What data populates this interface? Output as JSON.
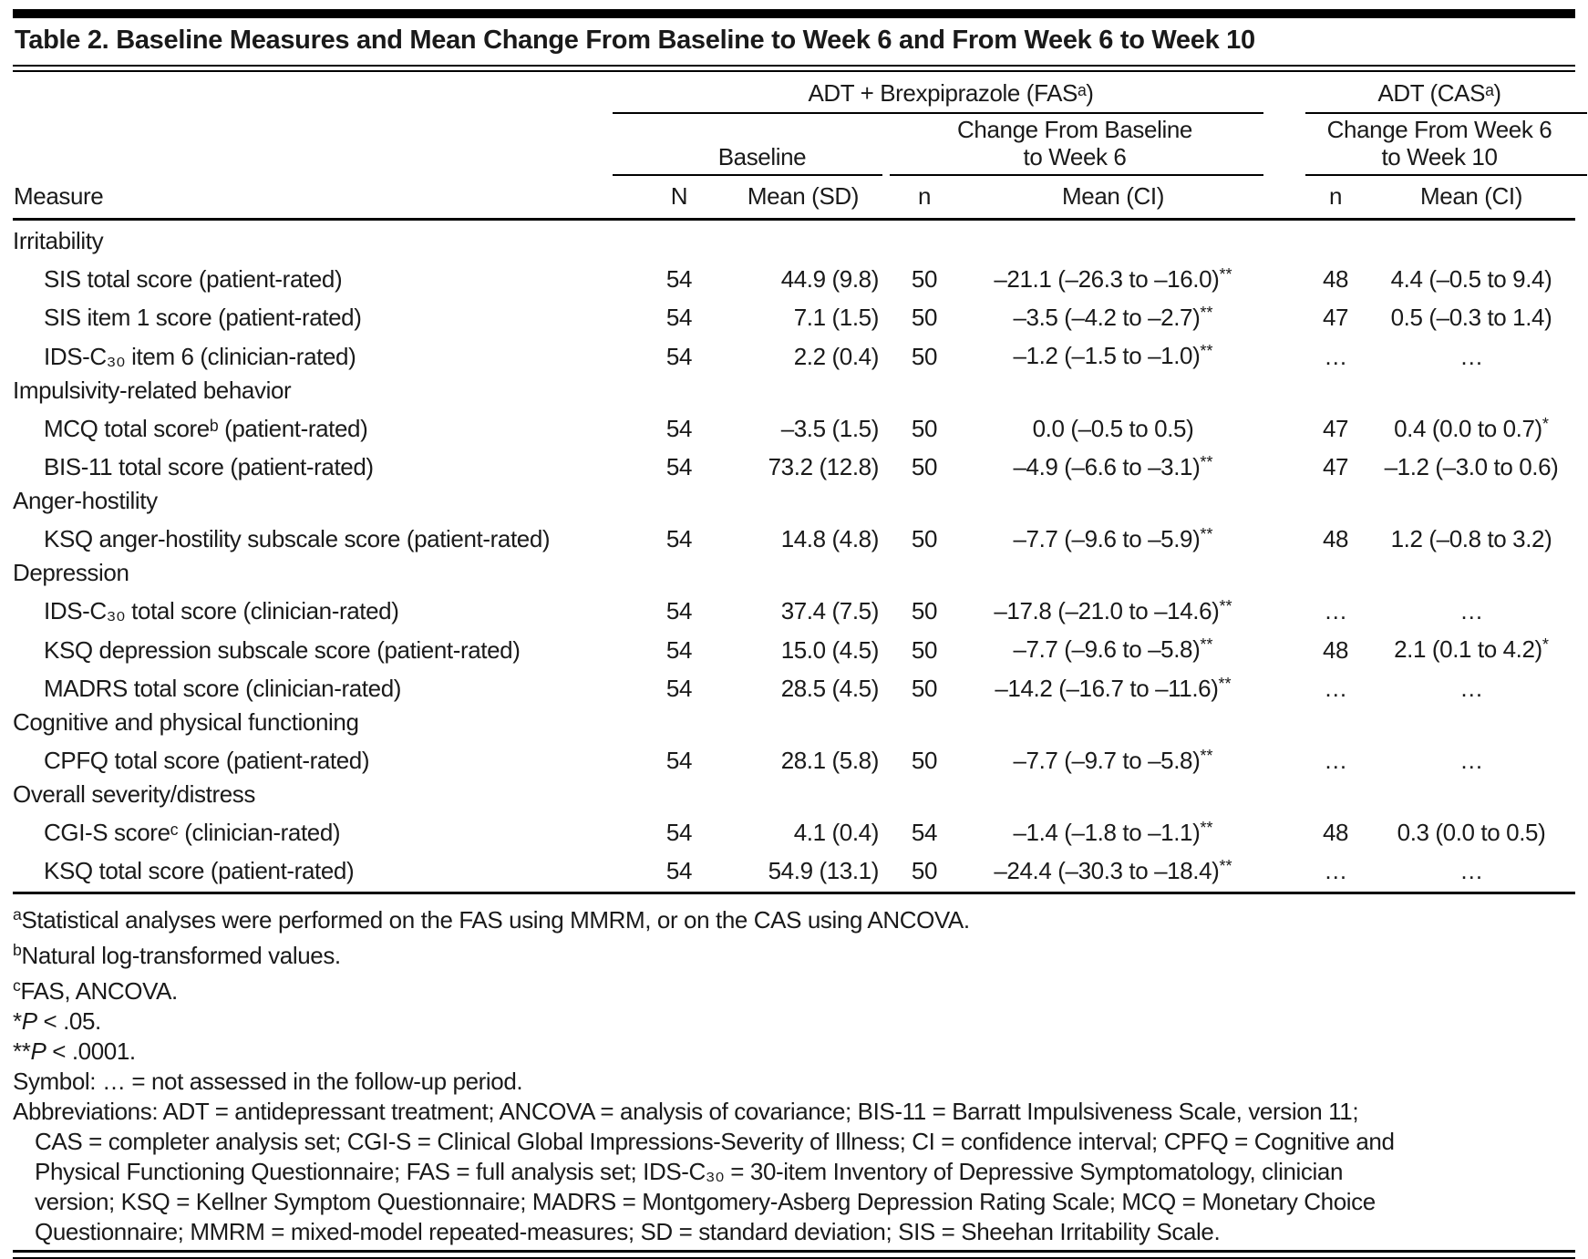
{
  "title": "Table 2. Baseline Measures and Mean Change From Baseline to Week 6 and From Week 6 to Week 10",
  "header": {
    "measure": "Measure",
    "group1": "ADT + Brexpiprazole (FASᵃ)",
    "group2": "ADT (CASᵃ)",
    "sub_baseline": "Baseline",
    "sub_change6": "Change From Baseline\nto Week 6",
    "sub_change10": "Change From Week 6\nto Week 10",
    "col_N": "N",
    "col_mean_sd": "Mean (SD)",
    "col_n6": "n",
    "col_mean_ci6": "Mean (CI)",
    "col_n10": "n",
    "col_mean_ci10": "Mean (CI)"
  },
  "table": {
    "rows": [
      {
        "type": "section",
        "label": "Irritability"
      },
      {
        "type": "data",
        "label": "SIS total score (patient-rated)",
        "n1": "54",
        "mean_sd": "44.9 (9.8)",
        "n2": "50",
        "mean_ci6": "–21.1 (–26.3 to –16.0)**",
        "n3": "48",
        "mean_ci10": "4.4 (–0.5 to 9.4)"
      },
      {
        "type": "data",
        "label": "SIS item 1 score (patient-rated)",
        "n1": "54",
        "mean_sd": "7.1 (1.5)",
        "n2": "50",
        "mean_ci6": "–3.5 (–4.2 to –2.7)**",
        "n3": "47",
        "mean_ci10": "0.5 (–0.3 to 1.4)"
      },
      {
        "type": "data",
        "label": "IDS-C₃₀ item 6 (clinician-rated)",
        "n1": "54",
        "mean_sd": "2.2 (0.4)",
        "n2": "50",
        "mean_ci6": "–1.2 (–1.5 to –1.0)**",
        "n3": "…",
        "mean_ci10": "…"
      },
      {
        "type": "section",
        "label": "Impulsivity-related behavior"
      },
      {
        "type": "data",
        "label": "MCQ total scoreᵇ (patient-rated)",
        "n1": "54",
        "mean_sd": "–3.5 (1.5)",
        "n2": "50",
        "mean_ci6": "0.0 (–0.5 to 0.5)",
        "n3": "47",
        "mean_ci10": "0.4 (0.0 to 0.7)*"
      },
      {
        "type": "data",
        "label": "BIS-11 total score (patient-rated)",
        "n1": "54",
        "mean_sd": "73.2 (12.8)",
        "n2": "50",
        "mean_ci6": "–4.9 (–6.6 to –3.1)**",
        "n3": "47",
        "mean_ci10": "–1.2 (–3.0 to 0.6)"
      },
      {
        "type": "section",
        "label": "Anger-hostility"
      },
      {
        "type": "data",
        "label": "KSQ anger-hostility subscale score (patient-rated)",
        "n1": "54",
        "mean_sd": "14.8 (4.8)",
        "n2": "50",
        "mean_ci6": "–7.7 (–9.6 to –5.9)**",
        "n3": "48",
        "mean_ci10": "1.2 (–0.8 to 3.2)"
      },
      {
        "type": "section",
        "label": "Depression"
      },
      {
        "type": "data",
        "label": "IDS-C₃₀ total score (clinician-rated)",
        "n1": "54",
        "mean_sd": "37.4 (7.5)",
        "n2": "50",
        "mean_ci6": "–17.8 (–21.0 to –14.6)**",
        "n3": "…",
        "mean_ci10": "…"
      },
      {
        "type": "data",
        "label": "KSQ depression subscale score (patient-rated)",
        "n1": "54",
        "mean_sd": "15.0 (4.5)",
        "n2": "50",
        "mean_ci6": "–7.7 (–9.6 to –5.8)**",
        "n3": "48",
        "mean_ci10": "2.1 (0.1 to 4.2)*"
      },
      {
        "type": "data",
        "label": "MADRS total score (clinician-rated)",
        "n1": "54",
        "mean_sd": "28.5 (4.5)",
        "n2": "50",
        "mean_ci6": "–14.2 (–16.7 to –11.6)**",
        "n3": "…",
        "mean_ci10": "…"
      },
      {
        "type": "section",
        "label": "Cognitive and physical functioning"
      },
      {
        "type": "data",
        "label": "CPFQ total score (patient-rated)",
        "n1": "54",
        "mean_sd": "28.1 (5.8)",
        "n2": "50",
        "mean_ci6": "–7.7 (–9.7 to –5.8)**",
        "n3": "…",
        "mean_ci10": "…"
      },
      {
        "type": "section",
        "label": "Overall severity/distress"
      },
      {
        "type": "data",
        "label": "CGI-S scoreᶜ (clinician-rated)",
        "n1": "54",
        "mean_sd": "4.1 (0.4)",
        "n2": "54",
        "mean_ci6": "–1.4 (–1.8 to –1.1)**",
        "n3": "48",
        "mean_ci10": "0.3 (0.0 to 0.5)"
      },
      {
        "type": "data",
        "label": "KSQ total score (patient-rated)",
        "n1": "54",
        "mean_sd": "54.9 (13.1)",
        "n2": "50",
        "mean_ci6": "–24.4 (–30.3 to –18.4)**",
        "n3": "…",
        "mean_ci10": "…"
      }
    ]
  },
  "footnotes": {
    "a": {
      "marker": "a",
      "text": "Statistical analyses were performed on the FAS using MMRM, or on the CAS using ANCOVA."
    },
    "b": {
      "marker": "b",
      "text": "Natural log-transformed values."
    },
    "c": {
      "marker": "c",
      "text": "FAS, ANCOVA."
    },
    "p05": {
      "marker": "*",
      "italic": "P",
      "text": " < .05."
    },
    "p0001": {
      "marker": "**",
      "italic": "P",
      "text": " < .0001."
    },
    "symbol": "Symbol: … = not assessed in the follow-up period.",
    "abbreviations": [
      "Abbreviations: ADT = antidepressant treatment; ANCOVA = analysis of covariance; BIS-11 = Barratt Impulsiveness Scale, version 11;",
      "CAS = completer analysis set; CGI-S = Clinical Global Impressions-Severity of Illness; CI = confidence interval; CPFQ = Cognitive and",
      "Physical Functioning Questionnaire; FAS = full analysis set; IDS-C₃₀ = 30-item Inventory of Depressive Symptomatology, clinician",
      "version; KSQ = Kellner Symptom Questionnaire; MADRS = Montgomery-Asberg Depression Rating Scale; MCQ = Monetary Choice",
      "Questionnaire; MMRM = mixed-model repeated-measures; SD = standard deviation; SIS = Sheehan Irritability Scale."
    ]
  }
}
